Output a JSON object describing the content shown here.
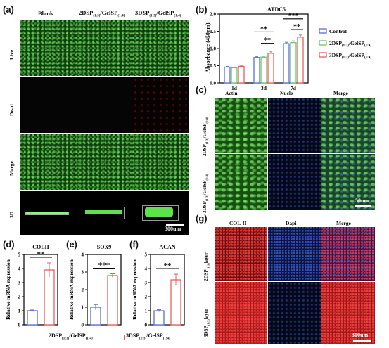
{
  "panels": {
    "a": {
      "label": "(a)",
      "columns": [
        {
          "main": "Blank",
          "sub": ""
        },
        {
          "main": "2DSP",
          "sub": "(1:3)",
          "main2": "/GelSP",
          "sub2": "(1:4)"
        },
        {
          "main": "3DSP",
          "sub": "(1:3)",
          "main2": "/GelSP",
          "sub2": "(1:4)"
        }
      ],
      "rows": [
        "Live",
        "Dead",
        "Merge",
        "3D"
      ],
      "scalebar": "300um"
    },
    "b": {
      "label": "(b)"
    },
    "c": {
      "label": "(c)",
      "columns": [
        "Actin",
        "Nucle",
        "Merge"
      ],
      "rows": [
        {
          "main": "2DSP",
          "sub": "(1:3)",
          "main2": "/GelSP",
          "sub2": "(1:4)"
        },
        {
          "main": "3DSP",
          "sub": "(1:3)",
          "main2": "/GelSP",
          "sub2": "(1:4)"
        }
      ],
      "scalebar": "50um"
    },
    "g": {
      "label": "(g)",
      "columns": [
        "COL-II",
        "Dapi",
        "Merge"
      ],
      "rows": [
        {
          "main": "2DSP",
          "sub": "(1:3)",
          "main2": "layer"
        },
        {
          "main": "3DSP",
          "sub": "(1:3)",
          "main2": "layer"
        }
      ],
      "scalebar": "300um"
    },
    "d": {
      "label": "(d)"
    },
    "e": {
      "label": "(e)"
    },
    "f": {
      "label": "(f)"
    },
    "legend_bottom": [
      {
        "main": "2DSP",
        "sub": "(1:3)",
        "main2": "/GelSP",
        "sub2": "(1:4)",
        "color": "#5b6fd6"
      },
      {
        "main": "3DSP",
        "sub": "(1:3)",
        "main2": "/GelSP",
        "sub2": "(1:4)",
        "color": "#e8605d"
      }
    ]
  },
  "chart_data": [
    {
      "type": "bar",
      "title": "ATDC5",
      "ylabel": "Absorbance (450nm)",
      "categories": [
        "1d",
        "3d",
        "7d"
      ],
      "ylim": [
        0,
        2.0
      ],
      "yticks": [
        "0.0",
        "0.5",
        "1.0",
        "1.5",
        "2.0"
      ],
      "series": [
        {
          "name": "Control",
          "values": [
            0.46,
            0.74,
            1.14
          ],
          "errors": [
            0.02,
            0.03,
            0.04
          ],
          "color": "#5b6fd6"
        },
        {
          "name": "2DSP(1:3)/GelSP(1:4)",
          "name_main": "2DSP",
          "name_sub": "(1:3)",
          "name_main2": "/GelSP",
          "name_sub2": "(1:4)",
          "values": [
            0.44,
            0.75,
            1.17
          ],
          "errors": [
            0.02,
            0.03,
            0.05
          ],
          "color": "#6cc26a"
        },
        {
          "name": "3DSP(1:3)/GelSP(1:4)",
          "name_main": "3DSP",
          "name_sub": "(1:3)",
          "name_main2": "/GelSP",
          "name_sub2": "(1:4)",
          "values": [
            0.48,
            0.86,
            1.33
          ],
          "errors": [
            0.03,
            0.06,
            0.06
          ],
          "color": "#e8605d"
        }
      ],
      "annotations": [
        "**",
        "**",
        "***",
        "**"
      ],
      "legend": "right"
    },
    {
      "type": "bar",
      "title": "COLII",
      "ylabel": "Relative mRNA expression",
      "categories": [
        "2DSP",
        "3DSP"
      ],
      "values": [
        1.0,
        3.9
      ],
      "errors": [
        0.05,
        0.5
      ],
      "colors": [
        "#5b6fd6",
        "#e8605d"
      ],
      "ylim": [
        0,
        5
      ],
      "yticks": [
        "0",
        "1",
        "2",
        "3",
        "4",
        "5"
      ],
      "annotation": "**"
    },
    {
      "type": "bar",
      "title": "SOX9",
      "ylabel": "Relative mRNA expression",
      "categories": [
        "2DSP",
        "3DSP"
      ],
      "values": [
        1.0,
        2.8
      ],
      "errors": [
        0.15,
        0.1
      ],
      "colors": [
        "#5b6fd6",
        "#e8605d"
      ],
      "ylim": [
        0,
        4
      ],
      "yticks": [
        "0",
        "1",
        "2",
        "3",
        "4"
      ],
      "annotation": "***"
    },
    {
      "type": "bar",
      "title": "ACAN",
      "ylabel": "Relative mRNA expression",
      "categories": [
        "2DSP",
        "3DSP"
      ],
      "values": [
        1.0,
        3.2
      ],
      "errors": [
        0.07,
        0.4
      ],
      "colors": [
        "#5b6fd6",
        "#e8605d"
      ],
      "ylim": [
        0,
        5
      ],
      "yticks": [
        "0",
        "1",
        "2",
        "3",
        "4",
        "5"
      ],
      "annotation": "**"
    }
  ]
}
